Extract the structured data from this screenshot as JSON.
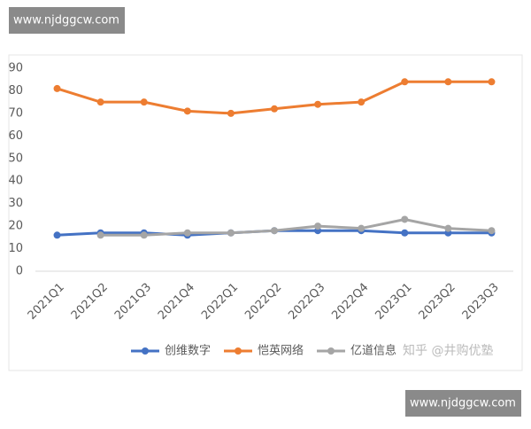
{
  "watermarks": {
    "top": "www.njdggcw.com",
    "bottom": "www.njdggcw.com",
    "source": "知乎 @井购优塾"
  },
  "chart_data": {
    "type": "line",
    "categories": [
      "2021Q1",
      "2021Q2",
      "2021Q3",
      "2021Q4",
      "2022Q1",
      "2022Q2",
      "2022Q3",
      "2022Q4",
      "2023Q1",
      "2023Q2",
      "2023Q3"
    ],
    "series": [
      {
        "name": "创维数字",
        "color": "#4472c4",
        "values": [
          16,
          17,
          17,
          16,
          17,
          18,
          18,
          18,
          17,
          17,
          17
        ]
      },
      {
        "name": "恺英网络",
        "color": "#ed7d31",
        "values": [
          81,
          75,
          75,
          71,
          70,
          72,
          74,
          75,
          84,
          84,
          84
        ]
      },
      {
        "name": "亿道信息",
        "color": "#a5a5a5",
        "values": [
          null,
          16,
          16,
          17,
          17,
          18,
          20,
          19,
          23,
          19,
          18
        ]
      }
    ],
    "ylim": [
      0,
      90
    ],
    "yticks": [
      0,
      10,
      20,
      30,
      40,
      50,
      60,
      70,
      80,
      90
    ],
    "grid": false,
    "legend": "bottom"
  }
}
